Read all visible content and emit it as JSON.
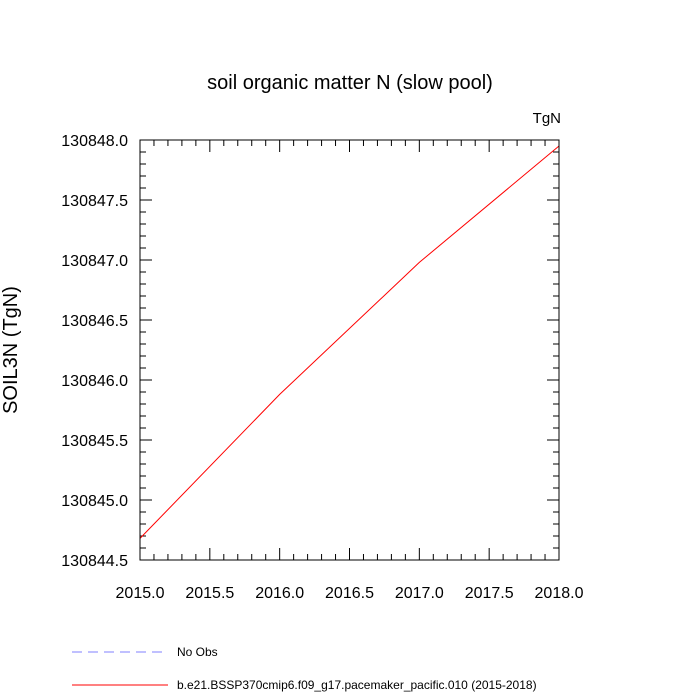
{
  "chart_data": {
    "type": "line",
    "title": "soil organic matter N (slow pool)",
    "units_label": "TgN",
    "ylabel": "SOIL3N  (TgN)",
    "xlabel": "",
    "xlim": [
      2015.0,
      2018.0
    ],
    "ylim": [
      130844.5,
      130848.0
    ],
    "x_ticks": [
      "2015.0",
      "2015.5",
      "2016.0",
      "2016.5",
      "2017.0",
      "2017.5",
      "2018.0"
    ],
    "y_ticks": [
      "130844.5",
      "130845.0",
      "130845.5",
      "130846.0",
      "130846.5",
      "130847.0",
      "130847.5",
      "130848.0"
    ],
    "series": [
      {
        "name": "b.e21.BSSP370cmip6.f09_g17.pacemaker_pacific.010 (2015-2018)",
        "color": "#ff0000",
        "dash": "solid",
        "x": [
          2015.0,
          2016.0,
          2017.0,
          2018.0
        ],
        "y": [
          130844.68,
          130845.88,
          130846.98,
          130847.95
        ]
      }
    ],
    "legend": [
      {
        "label": "No Obs",
        "color": "#8080ff",
        "dash": "dashed"
      },
      {
        "label": "b.e21.BSSP370cmip6.f09_g17.pacemaker_pacific.010 (2015-2018)",
        "color": "#ff0000",
        "dash": "solid"
      }
    ],
    "legend_placement": "bottom",
    "grid": false
  }
}
